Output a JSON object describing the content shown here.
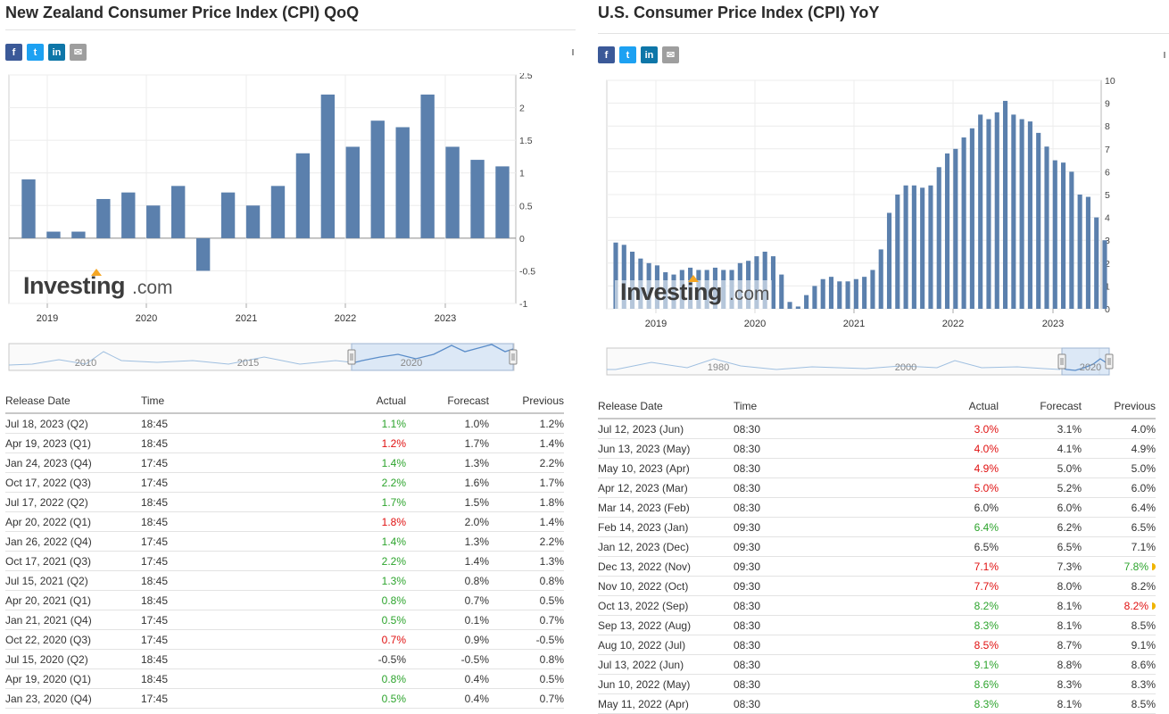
{
  "left": {
    "title": "New Zealand Consumer Price Index (CPI) QoQ",
    "share": {
      "facebook": "f",
      "twitter": "t",
      "linkedin": "in",
      "email": "✉"
    },
    "watermark": {
      "brand": "Investing",
      "suffix": ".com"
    },
    "table": {
      "headers": {
        "date": "Release Date",
        "time": "Time",
        "actual": "Actual",
        "forecast": "Forecast",
        "previous": "Previous"
      },
      "rows": [
        {
          "date": "Jul 18, 2023 (Q2)",
          "time": "18:45",
          "actual": "1.1%",
          "forecast": "1.0%",
          "previous": "1.2%",
          "a_state": "up",
          "p_state": "neutral"
        },
        {
          "date": "Apr 19, 2023 (Q1)",
          "time": "18:45",
          "actual": "1.2%",
          "forecast": "1.7%",
          "previous": "1.4%",
          "a_state": "down",
          "p_state": "neutral"
        },
        {
          "date": "Jan 24, 2023 (Q4)",
          "time": "17:45",
          "actual": "1.4%",
          "forecast": "1.3%",
          "previous": "2.2%",
          "a_state": "up",
          "p_state": "neutral"
        },
        {
          "date": "Oct 17, 2022 (Q3)",
          "time": "17:45",
          "actual": "2.2%",
          "forecast": "1.6%",
          "previous": "1.7%",
          "a_state": "up",
          "p_state": "neutral"
        },
        {
          "date": "Jul 17, 2022 (Q2)",
          "time": "18:45",
          "actual": "1.7%",
          "forecast": "1.5%",
          "previous": "1.8%",
          "a_state": "up",
          "p_state": "neutral"
        },
        {
          "date": "Apr 20, 2022 (Q1)",
          "time": "18:45",
          "actual": "1.8%",
          "forecast": "2.0%",
          "previous": "1.4%",
          "a_state": "down",
          "p_state": "neutral"
        },
        {
          "date": "Jan 26, 2022 (Q4)",
          "time": "17:45",
          "actual": "1.4%",
          "forecast": "1.3%",
          "previous": "2.2%",
          "a_state": "up",
          "p_state": "neutral"
        },
        {
          "date": "Oct 17, 2021 (Q3)",
          "time": "17:45",
          "actual": "2.2%",
          "forecast": "1.4%",
          "previous": "1.3%",
          "a_state": "up",
          "p_state": "neutral"
        },
        {
          "date": "Jul 15, 2021 (Q2)",
          "time": "18:45",
          "actual": "1.3%",
          "forecast": "0.8%",
          "previous": "0.8%",
          "a_state": "up",
          "p_state": "neutral"
        },
        {
          "date": "Apr 20, 2021 (Q1)",
          "time": "18:45",
          "actual": "0.8%",
          "forecast": "0.7%",
          "previous": "0.5%",
          "a_state": "up",
          "p_state": "neutral"
        },
        {
          "date": "Jan 21, 2021 (Q4)",
          "time": "17:45",
          "actual": "0.5%",
          "forecast": "0.1%",
          "previous": "0.7%",
          "a_state": "up",
          "p_state": "neutral"
        },
        {
          "date": "Oct 22, 2020 (Q3)",
          "time": "17:45",
          "actual": "0.7%",
          "forecast": "0.9%",
          "previous": "-0.5%",
          "a_state": "down",
          "p_state": "neutral"
        },
        {
          "date": "Jul 15, 2020 (Q2)",
          "time": "18:45",
          "actual": "-0.5%",
          "forecast": "-0.5%",
          "previous": "0.8%",
          "a_state": "neutral",
          "p_state": "neutral"
        },
        {
          "date": "Apr 19, 2020 (Q1)",
          "time": "18:45",
          "actual": "0.8%",
          "forecast": "0.4%",
          "previous": "0.5%",
          "a_state": "up",
          "p_state": "neutral"
        },
        {
          "date": "Jan 23, 2020 (Q4)",
          "time": "17:45",
          "actual": "0.5%",
          "forecast": "0.4%",
          "previous": "0.7%",
          "a_state": "up",
          "p_state": "neutral"
        }
      ]
    }
  },
  "right": {
    "title": "U.S. Consumer Price Index (CPI) YoY",
    "share": {
      "facebook": "f",
      "twitter": "t",
      "linkedin": "in",
      "email": "✉"
    },
    "watermark": {
      "brand": "Investing",
      "suffix": ".com"
    },
    "table": {
      "headers": {
        "date": "Release Date",
        "time": "Time",
        "actual": "Actual",
        "forecast": "Forecast",
        "previous": "Previous"
      },
      "rows": [
        {
          "date": "Jul 12, 2023 (Jun)",
          "time": "08:30",
          "actual": "3.0%",
          "forecast": "3.1%",
          "previous": "4.0%",
          "a_state": "down",
          "p_state": "neutral"
        },
        {
          "date": "Jun 13, 2023 (May)",
          "time": "08:30",
          "actual": "4.0%",
          "forecast": "4.1%",
          "previous": "4.9%",
          "a_state": "down",
          "p_state": "neutral"
        },
        {
          "date": "May 10, 2023 (Apr)",
          "time": "08:30",
          "actual": "4.9%",
          "forecast": "5.0%",
          "previous": "5.0%",
          "a_state": "down",
          "p_state": "neutral"
        },
        {
          "date": "Apr 12, 2023 (Mar)",
          "time": "08:30",
          "actual": "5.0%",
          "forecast": "5.2%",
          "previous": "6.0%",
          "a_state": "down",
          "p_state": "neutral"
        },
        {
          "date": "Mar 14, 2023 (Feb)",
          "time": "08:30",
          "actual": "6.0%",
          "forecast": "6.0%",
          "previous": "6.4%",
          "a_state": "neutral",
          "p_state": "neutral"
        },
        {
          "date": "Feb 14, 2023 (Jan)",
          "time": "09:30",
          "actual": "6.4%",
          "forecast": "6.2%",
          "previous": "6.5%",
          "a_state": "up",
          "p_state": "neutral"
        },
        {
          "date": "Jan 12, 2023 (Dec)",
          "time": "09:30",
          "actual": "6.5%",
          "forecast": "6.5%",
          "previous": "7.1%",
          "a_state": "neutral",
          "p_state": "neutral"
        },
        {
          "date": "Dec 13, 2022 (Nov)",
          "time": "09:30",
          "actual": "7.1%",
          "forecast": "7.3%",
          "previous": "7.8%",
          "a_state": "down",
          "p_state": "up",
          "p_revised": true
        },
        {
          "date": "Nov 10, 2022 (Oct)",
          "time": "09:30",
          "actual": "7.7%",
          "forecast": "8.0%",
          "previous": "8.2%",
          "a_state": "down",
          "p_state": "neutral"
        },
        {
          "date": "Oct 13, 2022 (Sep)",
          "time": "08:30",
          "actual": "8.2%",
          "forecast": "8.1%",
          "previous": "8.2%",
          "a_state": "up",
          "p_state": "down",
          "p_revised": true
        },
        {
          "date": "Sep 13, 2022 (Aug)",
          "time": "08:30",
          "actual": "8.3%",
          "forecast": "8.1%",
          "previous": "8.5%",
          "a_state": "up",
          "p_state": "neutral"
        },
        {
          "date": "Aug 10, 2022 (Jul)",
          "time": "08:30",
          "actual": "8.5%",
          "forecast": "8.7%",
          "previous": "9.1%",
          "a_state": "down",
          "p_state": "neutral"
        },
        {
          "date": "Jul 13, 2022 (Jun)",
          "time": "08:30",
          "actual": "9.1%",
          "forecast": "8.8%",
          "previous": "8.6%",
          "a_state": "up",
          "p_state": "neutral"
        },
        {
          "date": "Jun 10, 2022 (May)",
          "time": "08:30",
          "actual": "8.6%",
          "forecast": "8.3%",
          "previous": "8.3%",
          "a_state": "up",
          "p_state": "neutral"
        },
        {
          "date": "May 11, 2022 (Apr)",
          "time": "08:30",
          "actual": "8.3%",
          "forecast": "8.1%",
          "previous": "8.5%",
          "a_state": "up",
          "p_state": "neutral"
        }
      ]
    }
  },
  "colors": {
    "bar": "#5b80ad",
    "bar_light": "#b9cce0",
    "nav_fill": "#cfe0f4",
    "nav_line": "#5b8dc9",
    "up": "#2da42d",
    "down": "#e01010"
  },
  "chart_data": [
    {
      "type": "bar",
      "x_labels": [
        "2019",
        "2020",
        "2021",
        "2022",
        "2023"
      ],
      "y_ticks": [
        2.5,
        2,
        1.5,
        1,
        0.5,
        0,
        -0.5,
        -1
      ],
      "ylim": [
        -1,
        2.5
      ],
      "values": [
        0.9,
        0.1,
        0.1,
        0.6,
        0.7,
        0.5,
        0.8,
        -0.5,
        0.7,
        0.5,
        0.8,
        1.3,
        2.2,
        1.4,
        1.8,
        1.7,
        2.2,
        1.4,
        1.2,
        1.1
      ],
      "navigator_labels": [
        "2010",
        "2015",
        "2020"
      ],
      "grid": true
    },
    {
      "type": "bar",
      "x_labels": [
        "2019",
        "2020",
        "2021",
        "2022",
        "2023"
      ],
      "y_ticks": [
        10,
        9,
        8,
        7,
        6,
        5,
        4,
        3,
        2,
        1,
        0
      ],
      "ylim": [
        0,
        10
      ],
      "values": [
        2.9,
        2.8,
        2.5,
        2.2,
        2.0,
        1.9,
        1.6,
        1.5,
        1.7,
        1.8,
        1.7,
        1.7,
        1.8,
        1.7,
        1.7,
        2.0,
        2.1,
        2.3,
        2.5,
        2.3,
        1.5,
        0.3,
        0.1,
        0.6,
        1.0,
        1.3,
        1.4,
        1.2,
        1.2,
        1.3,
        1.4,
        1.7,
        2.6,
        4.2,
        5.0,
        5.4,
        5.4,
        5.3,
        5.4,
        6.2,
        6.8,
        7.0,
        7.5,
        7.9,
        8.5,
        8.3,
        8.6,
        9.1,
        8.5,
        8.3,
        8.2,
        7.7,
        7.1,
        6.5,
        6.4,
        6.0,
        5.0,
        4.9,
        4.0,
        3.0
      ],
      "navigator_labels": [
        "1980",
        "2000",
        "2020"
      ],
      "grid": true
    }
  ]
}
